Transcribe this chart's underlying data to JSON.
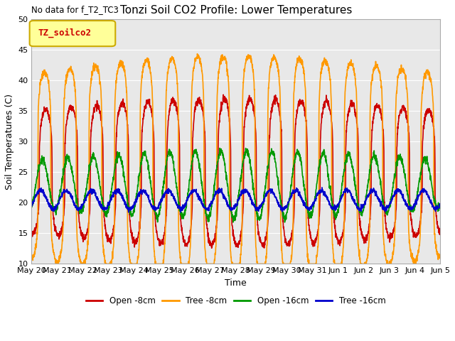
{
  "title": "Tonzi Soil CO2 Profile: Lower Temperatures",
  "ylabel": "Soil Temperatures (C)",
  "xlabel": "Time",
  "annotation": "No data for f_T2_TC3",
  "legend_box_label": "TZ_soilco2",
  "ylim": [
    10,
    50
  ],
  "yticks": [
    10,
    15,
    20,
    25,
    30,
    35,
    40,
    45,
    50
  ],
  "bg_color": "#e8e8e8",
  "fig_bg": "#ffffff",
  "series_labels": [
    "Open -8cm",
    "Tree -8cm",
    "Open -16cm",
    "Tree -16cm"
  ],
  "series_colors": [
    "#cc0000",
    "#ff9900",
    "#009900",
    "#0000cc"
  ],
  "line_width": 1.2,
  "n_days": 16,
  "samples_per_day": 144,
  "title_fontsize": 11,
  "label_fontsize": 9,
  "tick_fontsize": 8
}
